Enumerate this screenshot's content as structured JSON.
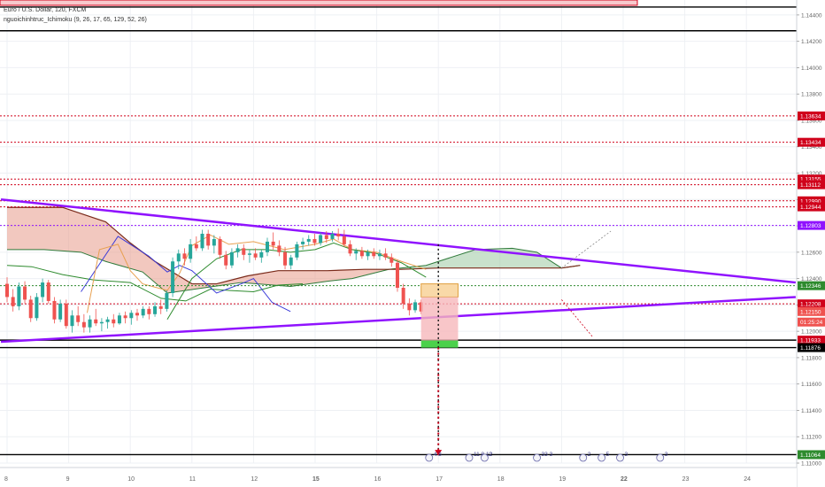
{
  "header": {
    "symbol": "Euro / U.S. Dollar, 120, FXCM",
    "indicator": "nguoichinhtruc_Ichimoku (9, 26, 17, 65, 129, 52, 26)"
  },
  "colors": {
    "background": "#ffffff",
    "grid": "#eef0f4",
    "red_level": "#d0021b",
    "purple": "#9013fe",
    "black_level": "#000000",
    "green_level": "#2e8b2e",
    "bull": "#26a69a",
    "bear": "#ef5350",
    "cloud_bull": "#9dc8a3",
    "cloud_bear": "#e89a8a",
    "tenkan": "#3a3ad8",
    "kijun": "#e8a050",
    "chikou": "#2e8b2e"
  },
  "chart_data": {
    "type": "candlestick",
    "symbol": "EURUSD",
    "timeframe": "120",
    "ylim": [
      1.11,
      1.145
    ],
    "y_ticks": [
      "1.14400",
      "1.14200",
      "1.14000",
      "1.13800",
      "1.13600",
      "1.13400",
      "1.13200",
      "1.13000",
      "1.12800",
      "1.12600",
      "1.12400",
      "1.12200",
      "1.12000",
      "1.11800",
      "1.11600",
      "1.11400",
      "1.11200",
      "1.11000"
    ],
    "x_ticks": [
      {
        "label": "8",
        "x": 0
      },
      {
        "label": "9",
        "x": 1
      },
      {
        "label": "10",
        "x": 2
      },
      {
        "label": "11",
        "x": 3
      },
      {
        "label": "12",
        "x": 4
      },
      {
        "label": "15",
        "x": 5
      },
      {
        "label": "16",
        "x": 6
      },
      {
        "label": "17",
        "x": 7
      },
      {
        "label": "18",
        "x": 8
      },
      {
        "label": "19",
        "x": 9
      },
      {
        "label": "22",
        "x": 10
      },
      {
        "label": "23",
        "x": 11
      },
      {
        "label": "24",
        "x": 12
      }
    ],
    "price_tags": [
      {
        "label": "1.13634",
        "value": 1.13634,
        "color": "#d0021b"
      },
      {
        "label": "1.13434",
        "value": 1.13434,
        "color": "#d0021b"
      },
      {
        "label": "1.13155",
        "value": 1.13155,
        "color": "#d0021b"
      },
      {
        "label": "1.13112",
        "value": 1.13112,
        "color": "#d0021b"
      },
      {
        "label": "1.12990",
        "value": 1.1299,
        "color": "#d0021b"
      },
      {
        "label": "1.12944",
        "value": 1.12944,
        "color": "#d0021b"
      },
      {
        "label": "1.12803",
        "value": 1.12803,
        "color": "#9013fe"
      },
      {
        "label": "1.12346",
        "value": 1.12346,
        "color": "#2e8b2e"
      },
      {
        "label": "1.12208",
        "value": 1.12208,
        "color": "#d0021b"
      },
      {
        "label": "1.12150",
        "value": 1.1215,
        "color": "#ef5350"
      },
      {
        "label": "01:25:24",
        "value": 1.1207,
        "color": "#ef5350"
      },
      {
        "label": "1.11933",
        "value": 1.11933,
        "color": "#d0021b"
      },
      {
        "label": "1.11876",
        "value": 1.11876,
        "color": "#000000"
      },
      {
        "label": "1.11064",
        "value": 1.11064,
        "color": "#2e8b2e"
      }
    ],
    "horizontal_levels": [
      {
        "value": 1.1446,
        "color": "#000000",
        "style": "solid"
      },
      {
        "value": 1.1428,
        "color": "#000000",
        "style": "solid"
      },
      {
        "value": 1.13634,
        "color": "#d0021b",
        "style": "dotted"
      },
      {
        "value": 1.13434,
        "color": "#d0021b",
        "style": "dotted"
      },
      {
        "value": 1.13155,
        "color": "#d0021b",
        "style": "dotted"
      },
      {
        "value": 1.13112,
        "color": "#d0021b",
        "style": "dotted"
      },
      {
        "value": 1.1299,
        "color": "#d0021b",
        "style": "dotted"
      },
      {
        "value": 1.12944,
        "color": "#d0021b",
        "style": "dotted"
      },
      {
        "value": 1.12803,
        "color": "#9013fe",
        "style": "dotted"
      },
      {
        "value": 1.12346,
        "color": "#2e8b2e",
        "style": "dotted"
      },
      {
        "value": 1.12208,
        "color": "#d0021b",
        "style": "dotted"
      },
      {
        "value": 1.11933,
        "color": "#000000",
        "style": "solid"
      },
      {
        "value": 1.11876,
        "color": "#000000",
        "style": "solid"
      },
      {
        "value": 1.11064,
        "color": "#000000",
        "style": "solid"
      }
    ],
    "trendlines": [
      {
        "from": [
          -0.1,
          1.13
        ],
        "to": [
          12.8,
          1.1237
        ],
        "color": "#9013fe"
      },
      {
        "from": [
          -0.1,
          1.1192
        ],
        "to": [
          12.8,
          1.1226
        ],
        "color": "#9013fe"
      }
    ],
    "candles": [
      [
        1.1236,
        1.1241,
        1.1222,
        1.1226
      ],
      [
        1.1226,
        1.1232,
        1.1215,
        1.1219
      ],
      [
        1.1219,
        1.1237,
        1.1216,
        1.1234
      ],
      [
        1.1234,
        1.1238,
        1.1221,
        1.1224
      ],
      [
        1.1224,
        1.1227,
        1.1207,
        1.121
      ],
      [
        1.121,
        1.1229,
        1.1208,
        1.1226
      ],
      [
        1.1226,
        1.124,
        1.1222,
        1.1237
      ],
      [
        1.1237,
        1.1239,
        1.1221,
        1.1223
      ],
      [
        1.1223,
        1.1226,
        1.1206,
        1.1209
      ],
      [
        1.1209,
        1.1224,
        1.1207,
        1.1221
      ],
      [
        1.1221,
        1.1224,
        1.1202,
        1.1204
      ],
      [
        1.1204,
        1.1216,
        1.1199,
        1.1212
      ],
      [
        1.1212,
        1.1219,
        1.1204,
        1.1207
      ],
      [
        1.1207,
        1.1213,
        1.1199,
        1.1203
      ],
      [
        1.1203,
        1.1212,
        1.1199,
        1.1209
      ],
      [
        1.1209,
        1.1217,
        1.1204,
        1.1206
      ],
      [
        1.1206,
        1.121,
        1.12,
        1.1207
      ],
      [
        1.1207,
        1.1211,
        1.1202,
        1.1209
      ],
      [
        1.1209,
        1.1213,
        1.1203,
        1.1206
      ],
      [
        1.1206,
        1.1214,
        1.1205,
        1.1212
      ],
      [
        1.1212,
        1.1215,
        1.1206,
        1.121
      ],
      [
        1.121,
        1.1216,
        1.1205,
        1.1214
      ],
      [
        1.1214,
        1.1217,
        1.1208,
        1.1212
      ],
      [
        1.1212,
        1.1219,
        1.121,
        1.1217
      ],
      [
        1.1217,
        1.1219,
        1.1209,
        1.1213
      ],
      [
        1.1213,
        1.1222,
        1.1211,
        1.1219
      ],
      [
        1.1219,
        1.1224,
        1.1213,
        1.1217
      ],
      [
        1.1217,
        1.1231,
        1.1215,
        1.1229
      ],
      [
        1.1229,
        1.1256,
        1.1226,
        1.1253
      ],
      [
        1.1253,
        1.1262,
        1.1247,
        1.1259
      ],
      [
        1.1259,
        1.1263,
        1.125,
        1.1255
      ],
      [
        1.1255,
        1.127,
        1.1252,
        1.1266
      ],
      [
        1.1266,
        1.1272,
        1.1261,
        1.1263
      ],
      [
        1.1263,
        1.1277,
        1.1261,
        1.1274
      ],
      [
        1.1274,
        1.1277,
        1.1262,
        1.1265
      ],
      [
        1.1265,
        1.1273,
        1.1259,
        1.127
      ],
      [
        1.127,
        1.1272,
        1.1255,
        1.1258
      ],
      [
        1.1258,
        1.1261,
        1.1247,
        1.125
      ],
      [
        1.125,
        1.1263,
        1.1248,
        1.126
      ],
      [
        1.126,
        1.1266,
        1.1256,
        1.1263
      ],
      [
        1.1263,
        1.1266,
        1.1254,
        1.1258
      ],
      [
        1.1258,
        1.1262,
        1.1252,
        1.1259
      ],
      [
        1.1259,
        1.1263,
        1.1254,
        1.1256
      ],
      [
        1.1256,
        1.1262,
        1.1252,
        1.126
      ],
      [
        1.126,
        1.1271,
        1.1257,
        1.1268
      ],
      [
        1.1268,
        1.1275,
        1.1262,
        1.1265
      ],
      [
        1.1265,
        1.1269,
        1.1257,
        1.126
      ],
      [
        1.126,
        1.1264,
        1.1247,
        1.125
      ],
      [
        1.125,
        1.1258,
        1.1247,
        1.1256
      ],
      [
        1.1256,
        1.1268,
        1.1254,
        1.1266
      ],
      [
        1.1266,
        1.1271,
        1.1262,
        1.1268
      ],
      [
        1.1268,
        1.1273,
        1.1265,
        1.127
      ],
      [
        1.127,
        1.1274,
        1.1265,
        1.1267
      ],
      [
        1.1267,
        1.1275,
        1.1265,
        1.1273
      ],
      [
        1.1273,
        1.1276,
        1.1267,
        1.127
      ],
      [
        1.127,
        1.1276,
        1.1268,
        1.1274
      ],
      [
        1.1274,
        1.1278,
        1.1269,
        1.1272
      ],
      [
        1.1272,
        1.1277,
        1.1264,
        1.1266
      ],
      [
        1.1266,
        1.1269,
        1.1257,
        1.1259
      ],
      [
        1.1259,
        1.1263,
        1.1254,
        1.1261
      ],
      [
        1.1261,
        1.1264,
        1.1255,
        1.1257
      ],
      [
        1.1257,
        1.1262,
        1.1254,
        1.126
      ],
      [
        1.126,
        1.1263,
        1.1255,
        1.1257
      ],
      [
        1.1257,
        1.1262,
        1.1254,
        1.1259
      ],
      [
        1.1259,
        1.1263,
        1.1254,
        1.1256
      ],
      [
        1.1256,
        1.1259,
        1.1249,
        1.1252
      ],
      [
        1.1252,
        1.1254,
        1.123,
        1.1233
      ],
      [
        1.1233,
        1.1236,
        1.1217,
        1.1221
      ],
      [
        1.1221,
        1.1225,
        1.1212,
        1.1216
      ],
      [
        1.1216,
        1.1224,
        1.1214,
        1.1222
      ],
      [
        1.1222,
        1.1224,
        1.1213,
        1.1215
      ]
    ],
    "cloud": {
      "span_a": [
        [
          0,
          1.1262
        ],
        [
          0.6,
          1.1262
        ],
        [
          1.2,
          1.126
        ],
        [
          1.6,
          1.1253
        ],
        [
          2.2,
          1.1245
        ],
        [
          2.6,
          1.1229
        ],
        [
          3.2,
          1.1233
        ],
        [
          3.8,
          1.1237
        ],
        [
          4.6,
          1.1234
        ],
        [
          5.2,
          1.1238
        ],
        [
          5.6,
          1.124
        ],
        [
          6.2,
          1.1247
        ],
        [
          6.8,
          1.125
        ],
        [
          7.6,
          1.1262
        ],
        [
          8.2,
          1.1263
        ],
        [
          8.6,
          1.126
        ],
        [
          9.0,
          1.1248
        ],
        [
          9.3,
          1.125
        ]
      ],
      "span_b": [
        [
          0,
          1.1294
        ],
        [
          0.9,
          1.1294
        ],
        [
          1.6,
          1.1283
        ],
        [
          2.0,
          1.1267
        ],
        [
          2.4,
          1.1253
        ],
        [
          3.0,
          1.1236
        ],
        [
          3.4,
          1.1236
        ],
        [
          3.9,
          1.1242
        ],
        [
          4.4,
          1.1246
        ],
        [
          5.2,
          1.1246
        ],
        [
          5.8,
          1.1247
        ],
        [
          6.4,
          1.1247
        ],
        [
          7.0,
          1.1248
        ],
        [
          7.8,
          1.1248
        ],
        [
          8.6,
          1.1248
        ],
        [
          9.0,
          1.1248
        ],
        [
          9.3,
          1.125
        ]
      ]
    },
    "tenkan": [
      [
        1.3,
        1.1214
      ],
      [
        1.5,
        1.1262
      ],
      [
        1.8,
        1.1266
      ],
      [
        2.0,
        1.1246
      ],
      [
        2.2,
        1.1236
      ],
      [
        2.6,
        1.1231
      ],
      [
        2.8,
        1.1244
      ],
      [
        3.0,
        1.1265
      ],
      [
        3.3,
        1.1273
      ],
      [
        3.6,
        1.1266
      ],
      [
        4.0,
        1.1268
      ],
      [
        4.5,
        1.1262
      ],
      [
        5.0,
        1.1266
      ],
      [
        5.3,
        1.127
      ],
      [
        5.6,
        1.1262
      ],
      [
        6.0,
        1.126
      ],
      [
        6.4,
        1.1253
      ],
      [
        6.8,
        1.1247
      ]
    ],
    "kijun": [
      [
        2.6,
        1.1209
      ],
      [
        3.0,
        1.124
      ],
      [
        3.4,
        1.1255
      ],
      [
        3.8,
        1.1262
      ],
      [
        4.2,
        1.1262
      ],
      [
        4.6,
        1.126
      ],
      [
        5.0,
        1.1262
      ],
      [
        5.3,
        1.1267
      ],
      [
        5.6,
        1.1262
      ],
      [
        6.0,
        1.1259
      ],
      [
        6.4,
        1.1252
      ],
      [
        6.8,
        1.1241
      ]
    ],
    "chikou": [
      [
        0,
        1.125
      ],
      [
        0.4,
        1.1249
      ],
      [
        0.9,
        1.1243
      ],
      [
        1.4,
        1.1239
      ],
      [
        2.0,
        1.1237
      ],
      [
        2.5,
        1.1225
      ],
      [
        2.9,
        1.1223
      ],
      [
        3.3,
        1.1232
      ],
      [
        3.6,
        1.1231
      ],
      [
        4.0,
        1.123
      ],
      [
        4.4,
        1.1235
      ],
      [
        4.8,
        1.1236
      ]
    ],
    "blue_line": [
      [
        1.2,
        1.123
      ],
      [
        1.8,
        1.1272
      ],
      [
        2.3,
        1.1257
      ],
      [
        2.6,
        1.1245
      ],
      [
        2.8,
        1.125
      ],
      [
        3.0,
        1.1246
      ],
      [
        3.4,
        1.1229
      ],
      [
        3.8,
        1.1236
      ],
      [
        4.0,
        1.124
      ],
      [
        4.3,
        1.1222
      ],
      [
        4.6,
        1.1215
      ]
    ],
    "position_box": {
      "x0": 6.72,
      "x1": 7.32,
      "entry": 1.1226,
      "target": 1.1236,
      "stop": 1.1193,
      "stop2": 1.11876
    },
    "projection": {
      "from_x": 7.0,
      "from_y": 1.1266,
      "to_x": 7.0,
      "to_y": 1.1106
    },
    "projection_arrows": [
      {
        "from": [
          9.0,
          1.1248
        ],
        "to": [
          9.8,
          1.1276
        ]
      },
      {
        "from": [
          9.0,
          1.1224
        ],
        "to": [
          9.5,
          1.1196
        ]
      }
    ],
    "events": [
      {
        "x": 6.85,
        "label": "4  8"
      },
      {
        "x": 7.5,
        "label": "11  8 12"
      },
      {
        "x": 7.75,
        "label": "2"
      },
      {
        "x": 8.6,
        "label": "33  3"
      },
      {
        "x": 9.35,
        "label": "2"
      },
      {
        "x": 9.65,
        "label": "5"
      },
      {
        "x": 9.95,
        "label": "3"
      },
      {
        "x": 10.6,
        "label": "3"
      }
    ],
    "grid": true,
    "legend": "top-left"
  }
}
